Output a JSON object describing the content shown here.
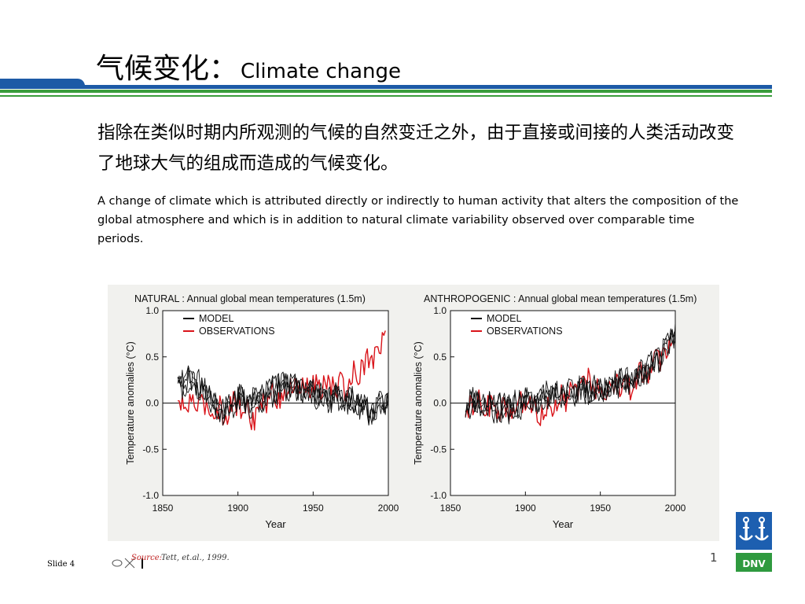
{
  "title": {
    "zh": "气候变化：",
    "en": "Climate change"
  },
  "definition": {
    "zh": "指除在类似时期内所观测的气候的自然变迁之外，由于直接或间接的人类活动改变了地球大气的组成而造成的气候变化。",
    "en": "A change of climate which is attributed directly or indirectly to human activity that alters the composition of the global atmosphere and which is in addition to natural climate variability observed over comparable time periods."
  },
  "colors": {
    "model": "#111111",
    "observations": "#d9141a",
    "band_blue": "#1c5aa6",
    "band_green": "#3a9d3c",
    "logo_blue": "#1d5fb0",
    "logo_green": "#2f9a3f"
  },
  "source": {
    "label": "Source:",
    "text": "Tett, et.al., 1999."
  },
  "footer": {
    "slide_label": "Slide 4",
    "page_glyph": "1"
  },
  "logo": {
    "text": "DNV",
    "icon": "dnv-anchor-icon"
  },
  "chart_data": [
    {
      "type": "line",
      "title": "NATURAL : Annual global mean temperatures (1.5m)",
      "xlabel": "Year",
      "ylabel": "Temperature anomalies (°C)",
      "xlim": [
        1850,
        2000
      ],
      "ylim": [
        -1.0,
        1.0
      ],
      "xticks": [
        "1850",
        "1900",
        "1950",
        "2000"
      ],
      "yticks": [
        "1.0",
        "0.5",
        "0.0",
        "-0.5",
        "-1.0"
      ],
      "legend": [
        "MODEL",
        "OBSERVATIONS"
      ],
      "grid": false,
      "series": [
        {
          "name": "OBSERVATIONS",
          "x": [
            1860,
            1870,
            1880,
            1890,
            1900,
            1910,
            1920,
            1930,
            1940,
            1950,
            1960,
            1970,
            1980,
            1985,
            1990,
            1995,
            2000
          ],
          "values": [
            -0.05,
            0.0,
            -0.05,
            -0.1,
            0.0,
            -0.15,
            0.05,
            0.1,
            0.2,
            0.15,
            0.2,
            0.15,
            0.35,
            0.45,
            0.55,
            0.6,
            0.85
          ]
        },
        {
          "name": "MODEL",
          "x": [
            1860,
            1870,
            1880,
            1890,
            1900,
            1910,
            1920,
            1930,
            1940,
            1950,
            1960,
            1970,
            1980,
            1990,
            2000
          ],
          "values": [
            0.2,
            0.25,
            0.1,
            -0.1,
            0.05,
            0.0,
            0.1,
            0.2,
            0.15,
            0.1,
            0.05,
            0.05,
            0.0,
            -0.1,
            0.05
          ]
        }
      ]
    },
    {
      "type": "line",
      "title": "ANTHROPOGENIC : Annual global mean temperatures (1.5m)",
      "xlabel": "Year",
      "ylabel": "Temperature anomalies (°C)",
      "xlim": [
        1850,
        2000
      ],
      "ylim": [
        -1.0,
        1.0
      ],
      "xticks": [
        "1850",
        "1900",
        "1950",
        "2000"
      ],
      "yticks": [
        "1.0",
        "0.5",
        "0.0",
        "-0.5",
        "-1.0"
      ],
      "legend": [
        "MODEL",
        "OBSERVATIONS"
      ],
      "grid": false,
      "series": [
        {
          "name": "OBSERVATIONS",
          "x": [
            1860,
            1870,
            1880,
            1890,
            1900,
            1910,
            1920,
            1930,
            1940,
            1950,
            1960,
            1970,
            1980,
            1985,
            1990,
            1995,
            2000
          ],
          "values": [
            -0.05,
            0.0,
            -0.05,
            -0.1,
            0.0,
            -0.1,
            0.0,
            0.1,
            0.25,
            0.15,
            0.2,
            0.15,
            0.35,
            0.45,
            0.5,
            0.6,
            0.85
          ]
        },
        {
          "name": "MODEL",
          "x": [
            1860,
            1870,
            1880,
            1890,
            1900,
            1910,
            1920,
            1930,
            1940,
            1950,
            1960,
            1970,
            1980,
            1990,
            2000
          ],
          "values": [
            0.0,
            0.0,
            -0.05,
            -0.05,
            0.0,
            0.05,
            0.1,
            0.1,
            0.15,
            0.15,
            0.2,
            0.25,
            0.35,
            0.5,
            0.75
          ]
        }
      ]
    }
  ]
}
